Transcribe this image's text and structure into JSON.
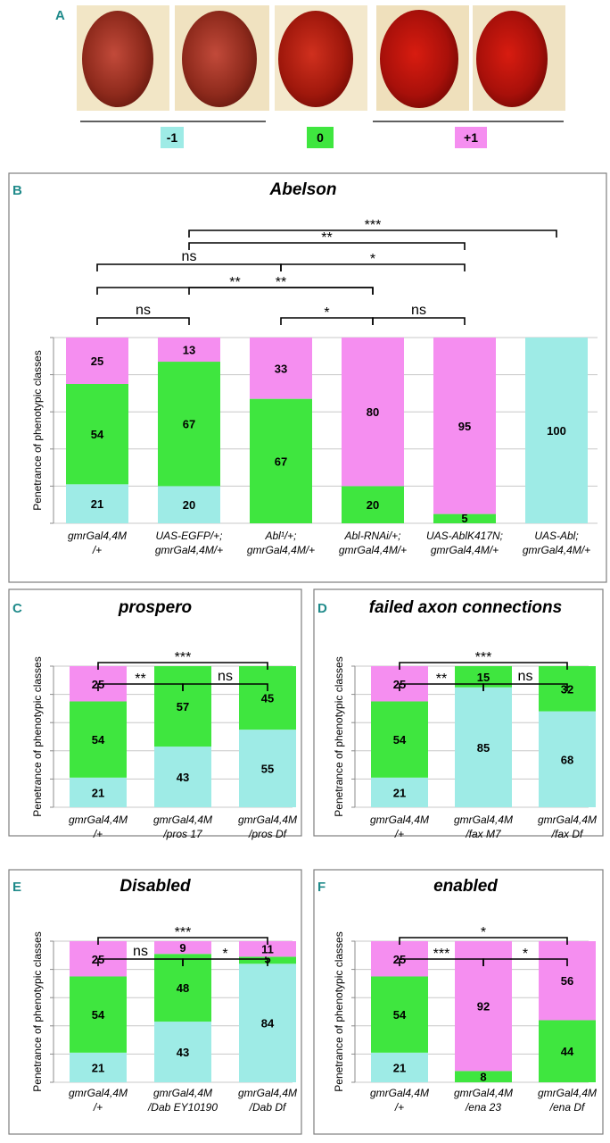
{
  "colors": {
    "minus1": "#9eebe6",
    "zero": "#3fe63f",
    "plus1": "#f58ef0"
  },
  "panel_a": {
    "label": "A",
    "legend": [
      {
        "text": "-1",
        "cls": "minus1"
      },
      {
        "text": "0",
        "cls": "zero"
      },
      {
        "text": "+1",
        "cls": "plus1"
      }
    ]
  },
  "chart_data": [
    {
      "panel": "B",
      "title": "Abelson",
      "type": "bar",
      "stacked": true,
      "ylabel": "Penetrance of phenotypic classes",
      "ylim": [
        0,
        100
      ],
      "categories": [
        [
          "gmrGal4,4M",
          "/+"
        ],
        [
          "UAS-EGFP/+;",
          "gmrGal4,4M/+"
        ],
        [
          "Abl¹/+;",
          "gmrGal4,4M/+"
        ],
        [
          "Abl-RNAi/+;",
          "gmrGal4,4M/+"
        ],
        [
          "UAS-AblK417N;",
          "gmrGal4,4M/+"
        ],
        [
          "UAS-Abl;",
          "gmrGal4,4M/+"
        ]
      ],
      "series": [
        {
          "name": "-1",
          "values": [
            21,
            20,
            0,
            0,
            0,
            100
          ]
        },
        {
          "name": "0",
          "values": [
            54,
            67,
            67,
            20,
            5,
            0
          ]
        },
        {
          "name": "+1",
          "values": [
            25,
            13,
            33,
            80,
            95,
            0
          ]
        }
      ],
      "significance": [
        {
          "from": 0,
          "to": 1,
          "text": "ns"
        },
        {
          "from": 2,
          "to": 3,
          "text": "*"
        },
        {
          "from": 3,
          "to": 4,
          "text": "ns"
        },
        {
          "from": 0,
          "to": 3,
          "text": "**"
        },
        {
          "from": 1,
          "to": 3,
          "text": "**"
        },
        {
          "from": 0,
          "to": 2,
          "text": "ns"
        },
        {
          "from": 2,
          "to": 4,
          "text": "*"
        },
        {
          "from": 1,
          "to": 4,
          "text": "**"
        },
        {
          "from": 1,
          "to": 5,
          "text": "***"
        }
      ]
    },
    {
      "panel": "C",
      "title": "prospero",
      "type": "bar",
      "stacked": true,
      "ylabel": "Penetrance of phenotypic classes",
      "ylim": [
        0,
        100
      ],
      "categories": [
        [
          "gmrGal4,4M",
          "/+"
        ],
        [
          "gmrGal4,4M",
          "/pros 17"
        ],
        [
          "gmrGal4,4M",
          "/pros Df"
        ]
      ],
      "series": [
        {
          "name": "-1",
          "values": [
            21,
            43,
            55
          ]
        },
        {
          "name": "0",
          "values": [
            54,
            57,
            45
          ]
        },
        {
          "name": "+1",
          "values": [
            25,
            0,
            0
          ]
        }
      ],
      "significance": [
        {
          "from": 0,
          "to": 1,
          "text": "**"
        },
        {
          "from": 1,
          "to": 2,
          "text": "ns"
        },
        {
          "from": 0,
          "to": 2,
          "text": "***"
        }
      ]
    },
    {
      "panel": "D",
      "title": "failed axon connections",
      "type": "bar",
      "stacked": true,
      "ylabel": "Penetrance of phenotypic classes",
      "ylim": [
        0,
        100
      ],
      "categories": [
        [
          "gmrGal4,4M",
          "/+"
        ],
        [
          "gmrGal4,4M",
          "/fax M7"
        ],
        [
          "gmrGal4,4M",
          "/fax Df"
        ]
      ],
      "series": [
        {
          "name": "-1",
          "values": [
            21,
            85,
            68
          ]
        },
        {
          "name": "0",
          "values": [
            54,
            15,
            32
          ]
        },
        {
          "name": "+1",
          "values": [
            25,
            0,
            0
          ]
        }
      ],
      "significance": [
        {
          "from": 0,
          "to": 1,
          "text": "**"
        },
        {
          "from": 1,
          "to": 2,
          "text": "ns"
        },
        {
          "from": 0,
          "to": 2,
          "text": "***"
        }
      ]
    },
    {
      "panel": "E",
      "title": "Disabled",
      "type": "bar",
      "stacked": true,
      "ylabel": "Penetrance of phenotypic classes",
      "ylim": [
        0,
        100
      ],
      "categories": [
        [
          "gmrGal4,4M",
          "/+"
        ],
        [
          "gmrGal4,4M",
          "/Dab EY10190"
        ],
        [
          "gmrGal4,4M",
          "/Dab Df"
        ]
      ],
      "series": [
        {
          "name": "-1",
          "values": [
            21,
            43,
            84
          ]
        },
        {
          "name": "0",
          "values": [
            54,
            48,
            5
          ]
        },
        {
          "name": "+1",
          "values": [
            25,
            9,
            11
          ]
        }
      ],
      "significance": [
        {
          "from": 0,
          "to": 1,
          "text": "ns"
        },
        {
          "from": 1,
          "to": 2,
          "text": "*"
        },
        {
          "from": 0,
          "to": 2,
          "text": "***"
        }
      ]
    },
    {
      "panel": "F",
      "title": "enabled",
      "type": "bar",
      "stacked": true,
      "ylabel": "Penetrance of phenotypic classes",
      "ylim": [
        0,
        100
      ],
      "categories": [
        [
          "gmrGal4,4M",
          "/+"
        ],
        [
          "gmrGal4,4M",
          "/ena 23"
        ],
        [
          "gmrGal4,4M",
          "/ena Df"
        ]
      ],
      "series": [
        {
          "name": "-1",
          "values": [
            21,
            0,
            0
          ]
        },
        {
          "name": "0",
          "values": [
            54,
            8,
            44
          ]
        },
        {
          "name": "+1",
          "values": [
            25,
            92,
            56
          ]
        }
      ],
      "significance": [
        {
          "from": 0,
          "to": 1,
          "text": "***"
        },
        {
          "from": 1,
          "to": 2,
          "text": "*"
        },
        {
          "from": 0,
          "to": 2,
          "text": "*"
        }
      ]
    }
  ]
}
